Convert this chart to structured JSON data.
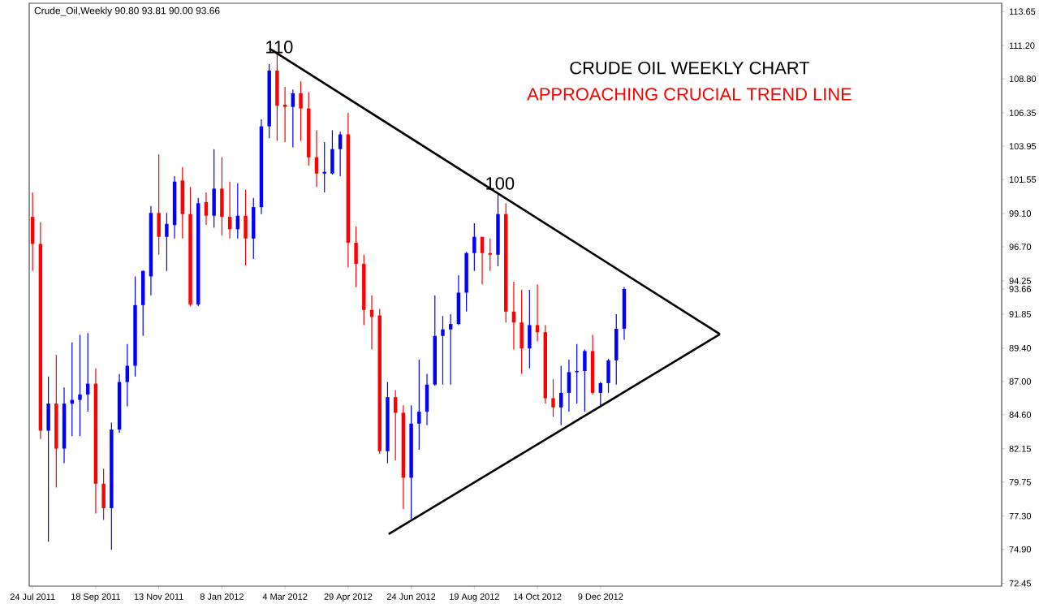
{
  "chart_data": {
    "type": "candlestick",
    "title": "CRUDE OIL WEEKLY CHART",
    "subtitle": "APPROACHING CRUCIAL TREND LINE",
    "annotations": [
      "Crude_Oil,Weekly  90.80 93.81 90.00 93.66",
      "110",
      "100"
    ],
    "x": [
      "2011-07-24",
      "2011-07-31",
      "2011-08-07",
      "2011-08-14",
      "2011-08-21",
      "2011-08-28",
      "2011-09-04",
      "2011-09-11",
      "2011-09-18",
      "2011-09-25",
      "2011-10-02",
      "2011-10-09",
      "2011-10-16",
      "2011-10-23",
      "2011-10-30",
      "2011-11-06",
      "2011-11-13",
      "2011-11-20",
      "2011-11-27",
      "2011-12-04",
      "2011-12-11",
      "2011-12-18",
      "2011-12-25",
      "2012-01-01",
      "2012-01-08",
      "2012-01-15",
      "2012-01-22",
      "2012-01-29",
      "2012-02-05",
      "2012-02-12",
      "2012-02-19",
      "2012-02-26",
      "2012-03-04",
      "2012-03-11",
      "2012-03-18",
      "2012-03-25",
      "2012-04-01",
      "2012-04-08",
      "2012-04-15",
      "2012-04-22",
      "2012-04-29",
      "2012-05-06",
      "2012-05-13",
      "2012-05-20",
      "2012-05-27",
      "2012-06-03",
      "2012-06-10",
      "2012-06-17",
      "2012-06-24",
      "2012-07-01",
      "2012-07-08",
      "2012-07-15",
      "2012-07-22",
      "2012-07-29",
      "2012-08-05",
      "2012-08-12",
      "2012-08-19",
      "2012-08-26",
      "2012-09-02",
      "2012-09-09",
      "2012-09-16",
      "2012-09-23",
      "2012-09-30",
      "2012-10-07",
      "2012-10-14",
      "2012-10-21",
      "2012-10-28",
      "2012-11-04",
      "2012-11-11",
      "2012-11-18",
      "2012-11-25",
      "2012-12-02",
      "2012-12-09",
      "2012-12-16",
      "2012-12-23",
      "2012-12-30"
    ],
    "ohlc": [
      [
        98.86,
        100.62,
        94.96,
        96.91
      ],
      [
        96.91,
        98.47,
        82.85,
        83.45
      ],
      [
        83.45,
        87.36,
        75.45,
        85.4
      ],
      [
        85.4,
        88.92,
        79.35,
        82.16
      ],
      [
        82.16,
        86.57,
        81.11,
        85.4
      ],
      [
        85.4,
        89.82,
        83.06,
        85.67
      ],
      [
        85.67,
        90.36,
        83.06,
        86.06
      ],
      [
        86.06,
        90.48,
        84.82,
        86.84
      ],
      [
        86.84,
        87.94,
        77.48,
        79.63
      ],
      [
        79.63,
        80.72,
        77.01,
        77.87
      ],
      [
        77.87,
        84.04,
        74.87,
        83.53
      ],
      [
        83.53,
        87.55,
        83.3,
        86.96
      ],
      [
        86.96,
        89.69,
        85.21,
        88.13
      ],
      [
        88.13,
        94.57,
        87.35,
        92.5
      ],
      [
        92.5,
        95.0,
        90.28,
        94.96
      ],
      [
        94.57,
        99.64,
        93.2,
        99.14
      ],
      [
        99.14,
        103.35,
        96.13,
        97.42
      ],
      [
        97.42,
        99.14,
        94.96,
        98.35
      ],
      [
        98.27,
        101.79,
        97.3,
        101.4
      ],
      [
        101.48,
        102.45,
        97.3,
        99.06
      ],
      [
        99.06,
        101.01,
        92.43,
        92.54
      ],
      [
        92.54,
        100.23,
        92.43,
        99.84
      ],
      [
        99.92,
        100.62,
        98.28,
        98.94
      ],
      [
        98.94,
        103.74,
        98.08,
        100.89
      ],
      [
        100.89,
        103.15,
        97.5,
        98.86
      ],
      [
        98.86,
        101.4,
        97.3,
        97.97
      ],
      [
        97.97,
        101.28,
        97.3,
        98.94
      ],
      [
        98.94,
        100.81,
        95.35,
        97.3
      ],
      [
        97.3,
        100.23,
        95.82,
        99.56
      ],
      [
        99.56,
        105.89,
        99.06,
        105.38
      ],
      [
        105.38,
        109.87,
        104.52,
        109.4
      ],
      [
        109.4,
        110.57,
        104.33,
        106.86
      ],
      [
        106.94,
        108.23,
        104.25,
        106.78
      ],
      [
        106.78,
        108.03,
        103.86,
        107.76
      ],
      [
        107.76,
        108.62,
        104.33,
        106.67
      ],
      [
        106.67,
        107.84,
        102.57,
        103.15
      ],
      [
        103.15,
        105.1,
        101.01,
        101.98
      ],
      [
        101.98,
        104.25,
        100.62,
        102.1
      ],
      [
        101.98,
        105.1,
        101.9,
        103.74
      ],
      [
        103.74,
        104.99,
        101.79,
        104.8
      ],
      [
        104.8,
        106.36,
        95.23,
        96.99
      ],
      [
        96.99,
        98.16,
        93.79,
        95.47
      ],
      [
        95.47,
        96.13,
        91.06,
        92.15
      ],
      [
        92.15,
        93.2,
        89.3,
        91.65
      ],
      [
        91.76,
        92.23,
        81.77,
        81.97
      ],
      [
        81.97,
        86.96,
        81.11,
        85.87
      ],
      [
        85.87,
        86.38,
        81.3,
        84.74
      ],
      [
        84.74,
        85.28,
        77.8,
        80.06
      ],
      [
        80.06,
        85.28,
        77.09,
        83.96
      ],
      [
        83.96,
        88.57,
        82.08,
        84.82
      ],
      [
        84.82,
        87.55,
        83.84,
        86.77
      ],
      [
        86.77,
        93.2,
        86.69,
        90.28
      ],
      [
        90.28,
        91.72,
        86.77,
        90.75
      ],
      [
        90.75,
        91.84,
        86.77,
        91.14
      ],
      [
        91.14,
        94.65,
        91.06,
        93.4
      ],
      [
        93.4,
        96.33,
        92.03,
        96.25
      ],
      [
        96.25,
        98.4,
        94.96,
        97.42
      ],
      [
        97.42,
        97.42,
        93.99,
        96.25
      ],
      [
        96.25,
        97.3,
        94.96,
        96.13
      ],
      [
        96.13,
        100.54,
        95.3,
        99.06
      ],
      [
        99.06,
        99.84,
        91.25,
        92.03
      ],
      [
        92.03,
        94.18,
        89.3,
        91.25
      ],
      [
        91.25,
        93.6,
        87.55,
        89.38
      ],
      [
        89.38,
        93.6,
        87.94,
        91.06
      ],
      [
        91.06,
        93.99,
        89.89,
        90.55
      ],
      [
        90.55,
        91.06,
        85.4,
        85.79
      ],
      [
        85.79,
        87.16,
        84.43,
        85.13
      ],
      [
        85.13,
        88.13,
        83.84,
        86.18
      ],
      [
        86.18,
        88.57,
        84.82,
        87.67
      ],
      [
        87.67,
        89.69,
        85.4,
        87.75
      ],
      [
        87.75,
        89.3,
        84.82,
        89.19
      ],
      [
        89.19,
        90.36,
        86.06,
        86.18
      ],
      [
        86.18,
        86.96,
        85.21,
        86.88
      ],
      [
        86.88,
        88.64,
        86.18,
        88.52
      ],
      [
        88.52,
        91.84,
        86.77,
        90.79
      ],
      [
        90.8,
        93.81,
        90.0,
        93.66
      ]
    ],
    "colors": [
      "#ff0000",
      "#ff0000",
      "#0000ff",
      "#ff0000",
      "#0000ff",
      "#0000ff",
      "#0000ff",
      "#0000ff",
      "#ff0000",
      "#ff0000",
      "#0000ff",
      "#0000ff",
      "#0000ff",
      "#0000ff",
      "#0000ff",
      "#0000ff",
      "#ff0000",
      "#0000ff",
      "#0000ff",
      "#ff0000",
      "#ff0000",
      "#0000ff",
      "#ff0000",
      "#0000ff",
      "#ff0000",
      "#ff0000",
      "#0000ff",
      "#ff0000",
      "#0000ff",
      "#0000ff",
      "#0000ff",
      "#ff0000",
      "#ff0000",
      "#0000ff",
      "#ff0000",
      "#ff0000",
      "#ff0000",
      "#0000ff",
      "#0000ff",
      "#0000ff",
      "#ff0000",
      "#ff0000",
      "#ff0000",
      "#ff0000",
      "#ff0000",
      "#0000ff",
      "#ff0000",
      "#ff0000",
      "#0000ff",
      "#0000ff",
      "#0000ff",
      "#0000ff",
      "#0000ff",
      "#0000ff",
      "#0000ff",
      "#0000ff",
      "#0000ff",
      "#ff0000",
      "#ff0000",
      "#0000ff",
      "#ff0000",
      "#ff0000",
      "#ff0000",
      "#0000ff",
      "#ff0000",
      "#ff0000",
      "#ff0000",
      "#0000ff",
      "#0000ff",
      "#0000ff",
      "#0000ff",
      "#ff0000",
      "#0000ff",
      "#0000ff",
      "#0000ff",
      "#0000ff"
    ],
    "series": [
      {
        "type": "line",
        "color": "#000000",
        "x": [
          "2012-02-19",
          "2013-03-25"
        ],
        "values": [
          111.0,
          90.4
        ]
      },
      {
        "type": "line",
        "color": "#000000",
        "x": [
          "2012-06-04",
          "2013-03-25"
        ],
        "values": [
          76.0,
          90.4
        ]
      }
    ],
    "xlim": [
      "2011-07-21",
      "2013-11-30"
    ],
    "xticks": [
      {
        "value": "2011-07-24",
        "label": "24 Jul 2011"
      },
      {
        "value": "2011-09-18",
        "label": "18 Sep 2011"
      },
      {
        "value": "2011-11-13",
        "label": "13 Nov 2011"
      },
      {
        "value": "2012-01-08",
        "label": "8 Jan 2012"
      },
      {
        "value": "2012-03-04",
        "label": "4 Mar 2012"
      },
      {
        "value": "2012-04-29",
        "label": "29 Apr 2012"
      },
      {
        "value": "2012-06-24",
        "label": "24 Jun 2012"
      },
      {
        "value": "2012-08-19",
        "label": "19 Aug 2012"
      },
      {
        "value": "2012-10-14",
        "label": "14 Oct 2012"
      },
      {
        "value": "2012-12-09",
        "label": "9 Dec 2012"
      }
    ],
    "ylim": [
      72.25,
      114.25
    ],
    "yticks": [
      72.45,
      {
        "value": 74.9,
        "label": "74.90"
      },
      {
        "value": 77.3,
        "label": "77.30"
      },
      79.75,
      82.15,
      {
        "value": 84.6,
        "label": "84.60"
      },
      {
        "value": 87.0,
        "label": "87.00"
      },
      {
        "value": 89.4,
        "label": "89.40"
      },
      91.85,
      93.66,
      94.25,
      {
        "value": 96.7,
        "label": "96.70"
      },
      {
        "value": 99.1,
        "label": "99.10"
      },
      101.55,
      103.95,
      106.35,
      {
        "value": 108.8,
        "label": "108.80"
      },
      {
        "value": 111.2,
        "label": "111.20"
      },
      113.65
    ]
  }
}
